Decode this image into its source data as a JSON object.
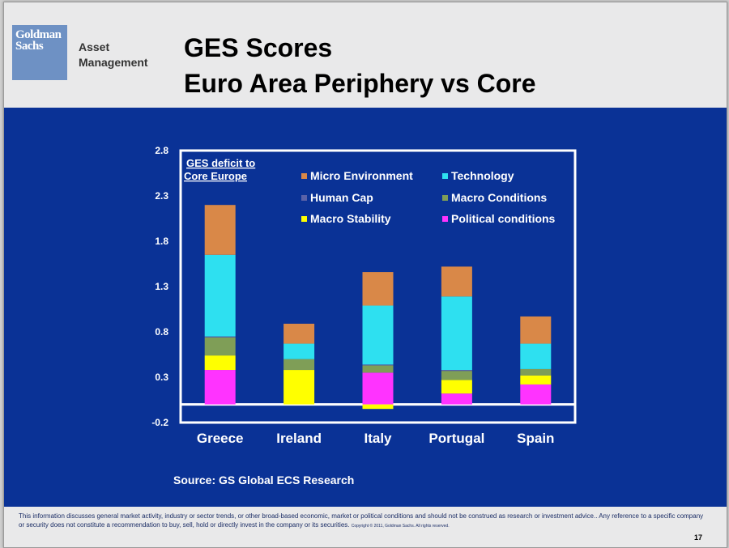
{
  "header": {
    "logo_line1": "Goldman",
    "logo_line2": "Sachs",
    "brand_line1": "Asset",
    "brand_line2": "Management",
    "title_line1": "GES Scores",
    "title_line2": "Euro Area Periphery vs Core"
  },
  "chart_data": {
    "type": "bar",
    "stacked": true,
    "plot_title_line1": "GES deficit to",
    "plot_title_line2": "Core Europe",
    "categories": [
      "Greece",
      "Ireland",
      "Italy",
      "Portugal",
      "Spain"
    ],
    "yticks": [
      "2.8",
      "2.3",
      "1.8",
      "1.3",
      "0.8",
      "0.3",
      "-0.2"
    ],
    "ylim": [
      -0.2,
      2.8
    ],
    "grid": false,
    "legend_position": "top-right",
    "series": [
      {
        "name": "Political conditions",
        "color": "#ff33ff",
        "values": [
          0.38,
          0.0,
          0.35,
          0.12,
          0.22
        ]
      },
      {
        "name": "Macro Stability",
        "color": "#ffff00",
        "values": [
          0.16,
          0.38,
          -0.05,
          0.15,
          0.1
        ]
      },
      {
        "name": "Macro Conditions",
        "color": "#7f9e57",
        "values": [
          0.2,
          0.12,
          0.08,
          0.1,
          0.07
        ]
      },
      {
        "name": "Human Cap",
        "color": "#5a62a8",
        "values": [
          0.01,
          0.0,
          0.01,
          0.01,
          0.0
        ]
      },
      {
        "name": "Technology",
        "color": "#2ee0f0",
        "values": [
          0.9,
          0.17,
          0.65,
          0.81,
          0.28
        ]
      },
      {
        "name": "Micro Environment",
        "color": "#d98848",
        "values": [
          0.55,
          0.22,
          0.37,
          0.33,
          0.3
        ]
      }
    ],
    "legend": [
      {
        "label": "Micro Environment",
        "color": "#d98848"
      },
      {
        "label": "Technology",
        "color": "#2ee0f0"
      },
      {
        "label": "Human Cap",
        "color": "#5a62a8"
      },
      {
        "label": "Macro Conditions",
        "color": "#7f9e57"
      },
      {
        "label": "Macro Stability",
        "color": "#ffff00"
      },
      {
        "label": "Political conditions",
        "color": "#ff33ff"
      }
    ]
  },
  "source_note": "Source: GS Global ECS Research",
  "footer": {
    "disclaimer_line1": "This information discusses general market activity, industry or sector trends, or other broad-based economic, market or political conditions and should not be construed as research or investment advice.. Any reference to a specific company",
    "disclaimer_line2": "or security does not constitute a recommendation to buy, sell, hold or directly invest in the company or its securities.",
    "copyright": "Copyright © 2011, Goldman Sachs. All rights reserved."
  },
  "page_number": "17",
  "colors": {
    "band": "#0a3296",
    "logo": "#6e91c4"
  }
}
